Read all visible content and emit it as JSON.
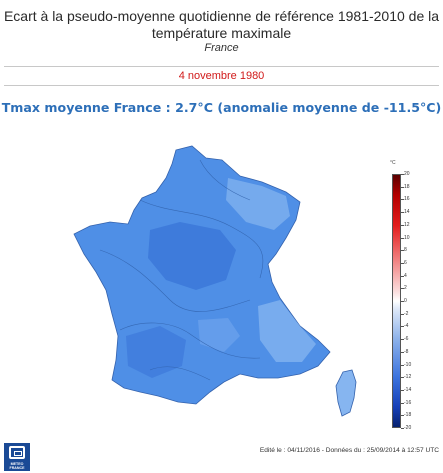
{
  "header": {
    "title_line1": "Ecart à la pseudo-moyenne quotidienne de référence 1981-2010 de la",
    "title_line2": "température maximale",
    "region": "France"
  },
  "date": "4 novembre 1980",
  "headline": "Tmax moyenne France : 2.7°C   (anomalie moyenne de -11.5°C)",
  "legend": {
    "unit": "°C",
    "ticks": [
      "20",
      "18",
      "16",
      "14",
      "12",
      "10",
      "8",
      "6",
      "4",
      "2",
      "0",
      "-2",
      "-4",
      "-6",
      "-8",
      "-10",
      "-12",
      "-14",
      "-16",
      "-18",
      "-20"
    ],
    "colors": {
      "warm_max": "#5b0000",
      "neutral": "#ffffff",
      "cold_max": "#07226f"
    }
  },
  "map": {
    "fill_color": "#4f8fe6",
    "cold_core_color": "#3a76d8",
    "milder_color": "#86b5f0"
  },
  "logo": {
    "text_line1": "METEO",
    "text_line2": "FRANCE"
  },
  "footer": "Edité le : 04/11/2016 - Données du : 25/09/2014 à 12:57 UTC"
}
